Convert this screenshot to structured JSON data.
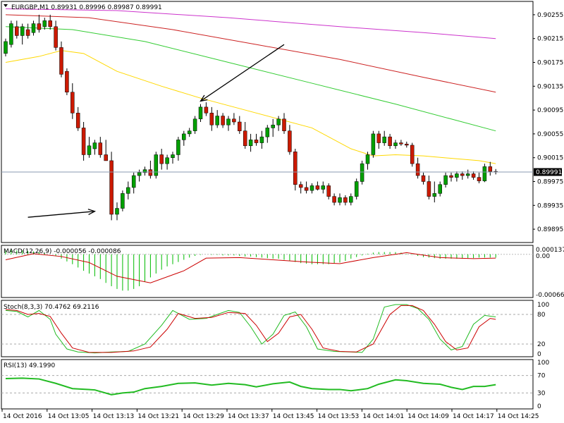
{
  "header": {
    "symbol_line": "EURGBP,M1  0.89931 0.89996 0.89987 0.89991",
    "macd_label": "MACD(12,26,9) -0.000056 -0.000086",
    "stoch_label": "Stoch(8,3,3) 70.4762 69.2116",
    "rsi_label": "RSI(13) 49.1990"
  },
  "price_scale": [
    "0.90255",
    "0.90215",
    "0.90175",
    "0.90135",
    "0.90095",
    "0.90055",
    "0.90015",
    "0.89975",
    "0.89935",
    "0.89895"
  ],
  "current_price": "0.89991",
  "macd_scale": [
    "0.000137",
    "0.00",
    "-0.000668"
  ],
  "stoch_scale": [
    "100",
    "80",
    "20",
    "0"
  ],
  "rsi_scale": [
    "100",
    "70",
    "30",
    "0"
  ],
  "time_labels": [
    "14 Oct 2016",
    "14 Oct 13:05",
    "14 Oct 13:13",
    "14 Oct 13:21",
    "14 Oct 13:29",
    "14 Oct 13:37",
    "14 Oct 13:45",
    "14 Oct 13:53",
    "14 Oct 14:01",
    "14 Oct 14:09",
    "14 Oct 14:17",
    "14 Oct 14:25"
  ],
  "colors": {
    "bull": "#00a000",
    "bear": "#cc1a00",
    "ma_yellow": "#ffd800",
    "ma_green": "#33cc33",
    "ma_red": "#cc2222",
    "ma_magenta": "#cc33cc",
    "macd_hist": "#00bb00",
    "macd_signal": "#cc0000",
    "stoch_main": "#22bb22",
    "stoch_signal": "#cc0000",
    "rsi_line": "#22bb22"
  },
  "chart_data": {
    "type": "candlestick",
    "symbol": "EURGBP",
    "timeframe": "M1",
    "ylim": [
      0.89875,
      0.90275
    ],
    "candles": [
      [
        0.9019,
        0.90215,
        0.90185,
        0.9021
      ],
      [
        0.90205,
        0.90245,
        0.902,
        0.9024
      ],
      [
        0.90235,
        0.90245,
        0.90215,
        0.9022
      ],
      [
        0.9022,
        0.9024,
        0.90205,
        0.90235
      ],
      [
        0.9023,
        0.9024,
        0.90215,
        0.9022
      ],
      [
        0.90225,
        0.90245,
        0.9022,
        0.9024
      ],
      [
        0.9024,
        0.90255,
        0.90225,
        0.9023
      ],
      [
        0.90235,
        0.9025,
        0.9023,
        0.90245
      ],
      [
        0.90245,
        0.90255,
        0.9023,
        0.90235
      ],
      [
        0.90235,
        0.90245,
        0.90195,
        0.902
      ],
      [
        0.902,
        0.9021,
        0.9015,
        0.90155
      ],
      [
        0.9016,
        0.90165,
        0.9012,
        0.90125
      ],
      [
        0.90125,
        0.9014,
        0.9008,
        0.9009
      ],
      [
        0.9009,
        0.901,
        0.9006,
        0.90065
      ],
      [
        0.90065,
        0.90075,
        0.9001,
        0.9002
      ],
      [
        0.9002,
        0.9005,
        0.90015,
        0.90035
      ],
      [
        0.9003,
        0.90045,
        0.9002,
        0.9004
      ],
      [
        0.9004,
        0.9005,
        0.90015,
        0.9002
      ],
      [
        0.9002,
        0.90045,
        0.9001,
        0.9001
      ],
      [
        0.9001,
        0.90025,
        0.8991,
        0.8992
      ],
      [
        0.8992,
        0.8994,
        0.8991,
        0.8993
      ],
      [
        0.8993,
        0.8996,
        0.89925,
        0.89955
      ],
      [
        0.89955,
        0.89975,
        0.89945,
        0.89965
      ],
      [
        0.89965,
        0.8999,
        0.89955,
        0.89985
      ],
      [
        0.89985,
        0.89995,
        0.89975,
        0.8999
      ],
      [
        0.8999,
        0.9,
        0.89985,
        0.89995
      ],
      [
        0.89995,
        0.9001,
        0.8998,
        0.89985
      ],
      [
        0.89985,
        0.90025,
        0.8998,
        0.9002
      ],
      [
        0.9002,
        0.9003,
        0.89995,
        0.90005
      ],
      [
        0.90005,
        0.9002,
        0.89995,
        0.90015
      ],
      [
        0.90015,
        0.90025,
        0.90005,
        0.9002
      ],
      [
        0.9002,
        0.9005,
        0.9001,
        0.90045
      ],
      [
        0.90045,
        0.9006,
        0.90035,
        0.90055
      ],
      [
        0.90055,
        0.90065,
        0.9005,
        0.9006
      ],
      [
        0.9006,
        0.90085,
        0.90055,
        0.9008
      ],
      [
        0.9008,
        0.90105,
        0.90075,
        0.901
      ],
      [
        0.901,
        0.90108,
        0.90085,
        0.9009
      ],
      [
        0.9009,
        0.901,
        0.9006,
        0.9007
      ],
      [
        0.9007,
        0.90095,
        0.90065,
        0.90085
      ],
      [
        0.90085,
        0.9009,
        0.90065,
        0.9007
      ],
      [
        0.9007,
        0.90085,
        0.9006,
        0.9008
      ],
      [
        0.9008,
        0.9009,
        0.9007,
        0.90075
      ],
      [
        0.90075,
        0.90085,
        0.90055,
        0.9006
      ],
      [
        0.9006,
        0.90075,
        0.9003,
        0.90035
      ],
      [
        0.90035,
        0.90055,
        0.90025,
        0.90045
      ],
      [
        0.90045,
        0.90055,
        0.90035,
        0.9004
      ],
      [
        0.9004,
        0.9006,
        0.9003,
        0.9005
      ],
      [
        0.9005,
        0.9007,
        0.9004,
        0.90065
      ],
      [
        0.90065,
        0.9008,
        0.9005,
        0.9007
      ],
      [
        0.9007,
        0.90085,
        0.9006,
        0.9008
      ],
      [
        0.9008,
        0.9009,
        0.90055,
        0.9006
      ],
      [
        0.9006,
        0.9007,
        0.9002,
        0.90025
      ],
      [
        0.90025,
        0.9003,
        0.8996,
        0.8997
      ],
      [
        0.8997,
        0.89975,
        0.89955,
        0.89965
      ],
      [
        0.89965,
        0.89975,
        0.89955,
        0.8996
      ],
      [
        0.8996,
        0.89972,
        0.89955,
        0.89968
      ],
      [
        0.89968,
        0.89975,
        0.8996,
        0.89962
      ],
      [
        0.89962,
        0.89975,
        0.89955,
        0.89968
      ],
      [
        0.89968,
        0.89972,
        0.89945,
        0.8995
      ],
      [
        0.8995,
        0.89955,
        0.89935,
        0.8994
      ],
      [
        0.8994,
        0.89955,
        0.89935,
        0.89948
      ],
      [
        0.89948,
        0.89952,
        0.89935,
        0.8994
      ],
      [
        0.8994,
        0.89955,
        0.89935,
        0.8995
      ],
      [
        0.8995,
        0.8998,
        0.89945,
        0.89975
      ],
      [
        0.89975,
        0.9001,
        0.8997,
        0.90005
      ],
      [
        0.90005,
        0.90025,
        0.89995,
        0.9002
      ],
      [
        0.9002,
        0.9006,
        0.90015,
        0.90055
      ],
      [
        0.90055,
        0.9006,
        0.9003,
        0.9004
      ],
      [
        0.9004,
        0.9006,
        0.90035,
        0.9005
      ],
      [
        0.9005,
        0.90055,
        0.9003,
        0.90035
      ],
      [
        0.90035,
        0.90045,
        0.9003,
        0.9004
      ],
      [
        0.9004,
        0.90045,
        0.90035,
        0.90038
      ],
      [
        0.90038,
        0.90042,
        0.90032,
        0.90036
      ],
      [
        0.90036,
        0.9004,
        0.9,
        0.90005
      ],
      [
        0.90005,
        0.90015,
        0.8998,
        0.89985
      ],
      [
        0.89985,
        0.8999,
        0.8997,
        0.89975
      ],
      [
        0.89975,
        0.89985,
        0.89945,
        0.8995
      ],
      [
        0.8995,
        0.89975,
        0.8994,
        0.89955
      ],
      [
        0.89955,
        0.89975,
        0.8995,
        0.8997
      ],
      [
        0.8997,
        0.8999,
        0.89965,
        0.89985
      ],
      [
        0.89985,
        0.8999,
        0.89975,
        0.89982
      ],
      [
        0.89982,
        0.89992,
        0.89975,
        0.89988
      ],
      [
        0.89988,
        0.89992,
        0.89978,
        0.89985
      ],
      [
        0.89985,
        0.89995,
        0.8998,
        0.89988
      ],
      [
        0.89988,
        0.89992,
        0.89978,
        0.89982
      ],
      [
        0.89982,
        0.8999,
        0.89972,
        0.89976
      ],
      [
        0.89976,
        0.90005,
        0.89974,
        0.9
      ],
      [
        0.9,
        0.90008,
        0.89985,
        0.89992
      ],
      [
        0.89992,
        0.89996,
        0.89987,
        0.89991
      ]
    ],
    "moving_averages": [
      {
        "color_key": "ma_yellow",
        "values": [
          [
            0,
            0.90175
          ],
          [
            6,
            0.90185
          ],
          [
            10,
            0.90195
          ],
          [
            14,
            0.9019
          ],
          [
            20,
            0.9016
          ],
          [
            28,
            0.90135
          ],
          [
            35,
            0.90115
          ],
          [
            45,
            0.9009
          ],
          [
            55,
            0.90065
          ],
          [
            62,
            0.9003
          ],
          [
            66,
            0.90018
          ],
          [
            70,
            0.9002
          ],
          [
            75,
            0.90018
          ],
          [
            85,
            0.9001
          ],
          [
            88,
            0.90005
          ]
        ]
      },
      {
        "color_key": "ma_green",
        "values": [
          [
            0,
            0.90235
          ],
          [
            12,
            0.9023
          ],
          [
            25,
            0.9021
          ],
          [
            40,
            0.90175
          ],
          [
            55,
            0.9014
          ],
          [
            70,
            0.90105
          ],
          [
            80,
            0.9008
          ],
          [
            88,
            0.9006
          ]
        ]
      },
      {
        "color_key": "ma_red",
        "values": [
          [
            0,
            0.90255
          ],
          [
            15,
            0.9025
          ],
          [
            30,
            0.9023
          ],
          [
            45,
            0.90205
          ],
          [
            60,
            0.9018
          ],
          [
            75,
            0.9015
          ],
          [
            88,
            0.90125
          ]
        ]
      },
      {
        "color_key": "ma_magenta",
        "values": [
          [
            0,
            0.90265
          ],
          [
            20,
            0.90262
          ],
          [
            40,
            0.9025
          ],
          [
            60,
            0.90235
          ],
          [
            75,
            0.90225
          ],
          [
            88,
            0.90215
          ]
        ]
      }
    ],
    "arrows": [
      {
        "from": [
          4,
          0.89915
        ],
        "to": [
          16,
          0.89925
        ]
      },
      {
        "from": [
          50,
          0.90205
        ],
        "to": [
          35,
          0.9011
        ]
      }
    ],
    "macd": {
      "ylim": [
        -0.00076,
        0.000137
      ],
      "histogram": [
        8e-05,
        8e-05,
        7e-05,
        7e-05,
        6e-05,
        5e-05,
        4e-05,
        2e-05,
        0.0,
        -3e-05,
        -8e-05,
        -0.00013,
        -0.00018,
        -0.00024,
        -0.0003,
        -0.00035,
        -0.0004,
        -0.00045,
        -0.00052,
        -0.00058,
        -0.00063,
        -0.00066,
        -0.00066,
        -0.00063,
        -0.00058,
        -0.0005,
        -0.00042,
        -0.00035,
        -0.00028,
        -0.00022,
        -0.00018,
        -0.00014,
        -0.0001,
        -6e-05,
        -3e-05,
        -1e-05,
        0.0,
        -1e-05,
        -1e-05,
        -2e-05,
        -2e-05,
        -2e-05,
        -3e-05,
        -4e-05,
        -4e-05,
        -5e-05,
        -6e-05,
        -7e-05,
        -8e-05,
        -8e-05,
        -0.0001,
        -0.00012,
        -0.00014,
        -0.00016,
        -0.00017,
        -0.00018,
        -0.00018,
        -0.00018,
        -0.00018,
        -0.00017,
        -0.00015,
        -0.00012,
        -8e-05,
        -5e-05,
        -2e-05,
        1e-05,
        3e-05,
        4e-05,
        4e-05,
        4e-05,
        4e-05,
        3e-05,
        1e-05,
        -1e-05,
        -3e-05,
        -5e-05,
        -6e-05,
        -7e-05,
        -8e-05,
        -8e-05,
        -8e-05,
        -8e-05,
        -8e-05,
        -7e-05,
        -7e-05,
        -6e-05,
        -6e-05,
        -6e-05,
        -6e-05
      ],
      "signal": [
        [
          0,
          -0.0001
        ],
        [
          5,
          1e-05
        ],
        [
          10,
          -4e-05
        ],
        [
          15,
          -0.00015
        ],
        [
          20,
          -0.0004
        ],
        [
          26,
          -0.00052
        ],
        [
          32,
          -0.0003
        ],
        [
          36,
          -7e-05
        ],
        [
          42,
          -6e-05
        ],
        [
          48,
          -0.0001
        ],
        [
          54,
          -0.00014
        ],
        [
          60,
          -0.00017
        ],
        [
          66,
          -6e-05
        ],
        [
          72,
          3e-05
        ],
        [
          78,
          -6e-05
        ],
        [
          84,
          -8e-05
        ],
        [
          88,
          -7e-05
        ]
      ]
    },
    "stochastic": {
      "ylim": [
        0,
        100
      ],
      "main": [
        [
          0,
          88
        ],
        [
          2,
          86
        ],
        [
          4,
          75
        ],
        [
          6,
          88
        ],
        [
          8,
          70
        ],
        [
          9,
          40
        ],
        [
          11,
          10
        ],
        [
          13,
          4
        ],
        [
          16,
          2
        ],
        [
          19,
          4
        ],
        [
          22,
          5
        ],
        [
          25,
          20
        ],
        [
          28,
          58
        ],
        [
          30,
          88
        ],
        [
          33,
          70
        ],
        [
          36,
          72
        ],
        [
          38,
          80
        ],
        [
          40,
          88
        ],
        [
          42,
          84
        ],
        [
          44,
          55
        ],
        [
          46,
          20
        ],
        [
          48,
          40
        ],
        [
          50,
          78
        ],
        [
          52,
          85
        ],
        [
          54,
          55
        ],
        [
          56,
          10
        ],
        [
          59,
          5
        ],
        [
          62,
          4
        ],
        [
          64,
          3
        ],
        [
          66,
          30
        ],
        [
          68,
          95
        ],
        [
          70,
          100
        ],
        [
          72,
          100
        ],
        [
          74,
          92
        ],
        [
          76,
          70
        ],
        [
          78,
          30
        ],
        [
          80,
          8
        ],
        [
          82,
          15
        ],
        [
          84,
          60
        ],
        [
          86,
          78
        ],
        [
          88,
          75
        ]
      ],
      "signal": [
        [
          0,
          90
        ],
        [
          2,
          88
        ],
        [
          4,
          80
        ],
        [
          6,
          82
        ],
        [
          8,
          76
        ],
        [
          10,
          42
        ],
        [
          12,
          12
        ],
        [
          15,
          3
        ],
        [
          19,
          3
        ],
        [
          23,
          6
        ],
        [
          26,
          14
        ],
        [
          29,
          50
        ],
        [
          31,
          82
        ],
        [
          34,
          72
        ],
        [
          37,
          74
        ],
        [
          40,
          84
        ],
        [
          43,
          82
        ],
        [
          45,
          58
        ],
        [
          47,
          25
        ],
        [
          49,
          42
        ],
        [
          51,
          75
        ],
        [
          53,
          80
        ],
        [
          55,
          50
        ],
        [
          57,
          12
        ],
        [
          60,
          5
        ],
        [
          63,
          4
        ],
        [
          66,
          20
        ],
        [
          69,
          80
        ],
        [
          71,
          98
        ],
        [
          73,
          98
        ],
        [
          75,
          88
        ],
        [
          77,
          60
        ],
        [
          79,
          25
        ],
        [
          81,
          8
        ],
        [
          83,
          12
        ],
        [
          85,
          55
        ],
        [
          87,
          72
        ],
        [
          88,
          70
        ]
      ]
    },
    "rsi": {
      "ylim": [
        0,
        100
      ],
      "values": [
        [
          0,
          63
        ],
        [
          3,
          64
        ],
        [
          6,
          62
        ],
        [
          9,
          52
        ],
        [
          12,
          40
        ],
        [
          16,
          37
        ],
        [
          19,
          26
        ],
        [
          21,
          30
        ],
        [
          23,
          32
        ],
        [
          25,
          40
        ],
        [
          28,
          45
        ],
        [
          31,
          52
        ],
        [
          34,
          53
        ],
        [
          37,
          48
        ],
        [
          40,
          52
        ],
        [
          43,
          49
        ],
        [
          45,
          44
        ],
        [
          48,
          51
        ],
        [
          51,
          55
        ],
        [
          53,
          45
        ],
        [
          55,
          40
        ],
        [
          58,
          38
        ],
        [
          60,
          38
        ],
        [
          62,
          35
        ],
        [
          65,
          40
        ],
        [
          67,
          50
        ],
        [
          70,
          60
        ],
        [
          72,
          58
        ],
        [
          75,
          52
        ],
        [
          78,
          50
        ],
        [
          80,
          43
        ],
        [
          82,
          38
        ],
        [
          84,
          45
        ],
        [
          86,
          45
        ],
        [
          88,
          49
        ]
      ]
    }
  }
}
